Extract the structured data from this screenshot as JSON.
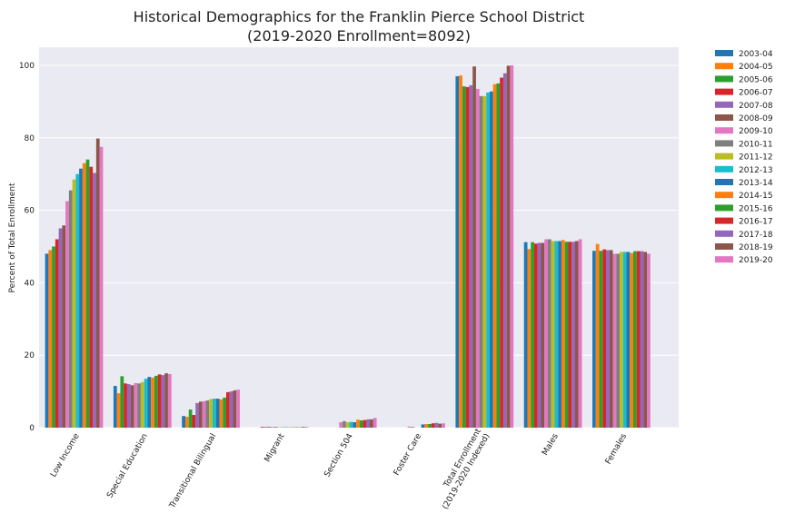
{
  "chart_data": {
    "type": "bar",
    "title": "Historical Demographics for the Franklin Pierce School District",
    "subtitle": "(2019-2020 Enrollment=8092)",
    "xlabel": "",
    "ylabel": "Percent of Total Enrollment",
    "ylim": [
      0,
      105
    ],
    "yticks": [
      0,
      20,
      40,
      60,
      80,
      100
    ],
    "grid": true,
    "legend_position": "outside-right",
    "categories": [
      [
        "Low Income"
      ],
      [
        "Special Education"
      ],
      [
        "Transitional Bilingual"
      ],
      [
        "Migrant"
      ],
      [
        "Section 504"
      ],
      [
        "Foster Care"
      ],
      [
        "Total Enrollment",
        "(2019-2020 Indexed)"
      ],
      [
        "Males"
      ],
      [
        "Females"
      ]
    ],
    "series": [
      {
        "name": "2003-04",
        "color": "#1f77b4",
        "values": [
          48.0,
          11.5,
          3.2,
          0,
          0,
          0,
          97.0,
          51.2,
          48.8
        ]
      },
      {
        "name": "2004-05",
        "color": "#ff7f0e",
        "values": [
          49.0,
          9.5,
          3.0,
          0,
          0,
          0,
          97.2,
          49.3,
          50.7
        ]
      },
      {
        "name": "2005-06",
        "color": "#2ca02c",
        "values": [
          50.0,
          14.2,
          5.0,
          0,
          0,
          0,
          94.2,
          51.2,
          48.8
        ]
      },
      {
        "name": "2006-07",
        "color": "#d62728",
        "values": [
          52.0,
          12.2,
          3.5,
          0.2,
          0,
          0,
          94.0,
          50.8,
          49.2
        ]
      },
      {
        "name": "2007-08",
        "color": "#9467bd",
        "values": [
          55.0,
          12.0,
          6.8,
          0.2,
          0,
          0,
          94.5,
          51.0,
          49.0
        ]
      },
      {
        "name": "2008-09",
        "color": "#8c564b",
        "values": [
          55.8,
          11.7,
          7.2,
          0.2,
          0,
          0,
          99.7,
          51.0,
          49.0
        ]
      },
      {
        "name": "2009-10",
        "color": "#e377c2",
        "values": [
          62.5,
          12.3,
          7.3,
          0.2,
          1.5,
          0.3,
          93.5,
          52.0,
          48.0
        ]
      },
      {
        "name": "2010-11",
        "color": "#7f7f7f",
        "values": [
          65.5,
          12.2,
          7.5,
          0.2,
          1.8,
          0.2,
          91.5,
          52.0,
          48.0
        ]
      },
      {
        "name": "2011-12",
        "color": "#bcbd22",
        "values": [
          68.5,
          12.6,
          7.9,
          0.1,
          1.5,
          0,
          91.5,
          51.5,
          48.5
        ]
      },
      {
        "name": "2012-13",
        "color": "#17becf",
        "values": [
          70.0,
          13.5,
          8.0,
          0.1,
          1.6,
          0,
          92.5,
          51.5,
          48.5
        ]
      },
      {
        "name": "2013-14",
        "color": "#1f77b4",
        "values": [
          71.5,
          14.0,
          8.0,
          0.1,
          1.5,
          0.9,
          92.8,
          51.5,
          48.5
        ]
      },
      {
        "name": "2014-15",
        "color": "#ff7f0e",
        "values": [
          73.0,
          13.8,
          7.8,
          0.1,
          2.2,
          1.0,
          94.8,
          51.8,
          48.2
        ]
      },
      {
        "name": "2015-16",
        "color": "#2ca02c",
        "values": [
          74.0,
          14.3,
          8.3,
          0.1,
          2.0,
          1.0,
          95.0,
          51.3,
          48.7
        ]
      },
      {
        "name": "2016-17",
        "color": "#d62728",
        "values": [
          72.0,
          14.7,
          9.8,
          0.1,
          2.1,
          1.2,
          96.6,
          51.3,
          48.7
        ]
      },
      {
        "name": "2017-18",
        "color": "#9467bd",
        "values": [
          70.3,
          14.5,
          10.0,
          0.1,
          2.3,
          1.3,
          97.8,
          51.3,
          48.7
        ]
      },
      {
        "name": "2018-19",
        "color": "#8c564b",
        "values": [
          79.8,
          15.0,
          10.3,
          0.2,
          2.3,
          1.1,
          99.9,
          51.5,
          48.5
        ]
      },
      {
        "name": "2019-20",
        "color": "#e377c2",
        "values": [
          77.5,
          14.8,
          10.5,
          0.2,
          2.7,
          1.2,
          100.0,
          52.0,
          48.0
        ]
      }
    ]
  }
}
